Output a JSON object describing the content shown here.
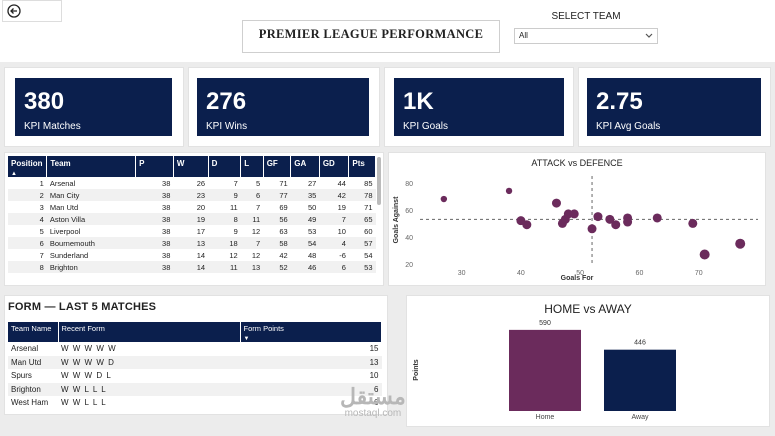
{
  "header": {
    "title": "PREMIER LEAGUE PERFORMANCE",
    "select_label": "SELECT TEAM",
    "select_value": "All"
  },
  "kpis": [
    {
      "value": "380",
      "label": "KPI Matches"
    },
    {
      "value": "276",
      "label": "KPI Wins"
    },
    {
      "value": "1K",
      "label": "KPI Goals"
    },
    {
      "value": "2.75",
      "label": "KPI Avg Goals"
    }
  ],
  "league_table": {
    "columns": [
      "Position",
      "Team",
      "P",
      "W",
      "D",
      "L",
      "GF",
      "GA",
      "GD",
      "Pts"
    ],
    "rows": [
      [
        "1",
        "Arsenal",
        "38",
        "26",
        "7",
        "5",
        "71",
        "27",
        "44",
        "85"
      ],
      [
        "2",
        "Man City",
        "38",
        "23",
        "9",
        "6",
        "77",
        "35",
        "42",
        "78"
      ],
      [
        "3",
        "Man Utd",
        "38",
        "20",
        "11",
        "7",
        "69",
        "50",
        "19",
        "71"
      ],
      [
        "4",
        "Aston Villa",
        "38",
        "19",
        "8",
        "11",
        "56",
        "49",
        "7",
        "65"
      ],
      [
        "5",
        "Liverpool",
        "38",
        "17",
        "9",
        "12",
        "63",
        "53",
        "10",
        "60"
      ],
      [
        "6",
        "Bournemouth",
        "38",
        "13",
        "18",
        "7",
        "58",
        "54",
        "4",
        "57"
      ],
      [
        "7",
        "Sunderland",
        "38",
        "14",
        "12",
        "12",
        "42",
        "48",
        "-6",
        "54"
      ],
      [
        "8",
        "Brighton",
        "38",
        "14",
        "11",
        "13",
        "52",
        "46",
        "6",
        "53"
      ]
    ]
  },
  "form": {
    "title": "FORM — LAST 5 MATCHES",
    "columns": [
      "Team Name",
      "Recent Form",
      "Form Points"
    ],
    "rows": [
      [
        "Arsenal",
        "W W W W W",
        "15"
      ],
      [
        "Man Utd",
        "W W W W D",
        "13"
      ],
      [
        "Spurs",
        "W W W D L",
        "10"
      ],
      [
        "Brighton",
        "W W L L L",
        "6"
      ],
      [
        "West Ham",
        "W W L L L",
        "6"
      ]
    ]
  },
  "chart_data": [
    {
      "type": "scatter",
      "title": "ATTACK vs DEFENCE",
      "xlabel": "Goals For",
      "ylabel": "Goals Against",
      "xlim": [
        25,
        80
      ],
      "ylim": [
        20,
        85
      ],
      "xticks": [
        30,
        40,
        50,
        60,
        70
      ],
      "yticks": [
        20,
        40,
        60,
        80
      ],
      "ref_x": 52,
      "ref_y": 53,
      "color": "#6b2b5c",
      "points": [
        {
          "x": 27,
          "y": 68
        },
        {
          "x": 38,
          "y": 74
        },
        {
          "x": 40,
          "y": 52
        },
        {
          "x": 41,
          "y": 49
        },
        {
          "x": 46,
          "y": 65
        },
        {
          "x": 47,
          "y": 50
        },
        {
          "x": 47.5,
          "y": 53
        },
        {
          "x": 48,
          "y": 57
        },
        {
          "x": 49,
          "y": 57
        },
        {
          "x": 52,
          "y": 46
        },
        {
          "x": 53,
          "y": 55
        },
        {
          "x": 55,
          "y": 53
        },
        {
          "x": 56,
          "y": 49
        },
        {
          "x": 58,
          "y": 54
        },
        {
          "x": 58,
          "y": 51
        },
        {
          "x": 63,
          "y": 54
        },
        {
          "x": 69,
          "y": 50
        },
        {
          "x": 71,
          "y": 27
        },
        {
          "x": 77,
          "y": 35
        }
      ]
    },
    {
      "type": "bar",
      "title": "HOME vs AWAY",
      "ylabel": "Points",
      "categories": [
        "Home",
        "Away"
      ],
      "values": [
        590,
        446
      ],
      "colors": [
        "#6b2b5c",
        "#0b1f4d"
      ],
      "ylim": [
        0,
        640
      ]
    }
  ],
  "watermark": {
    "arabic": "مستقل",
    "latin": "mostaql.com"
  }
}
